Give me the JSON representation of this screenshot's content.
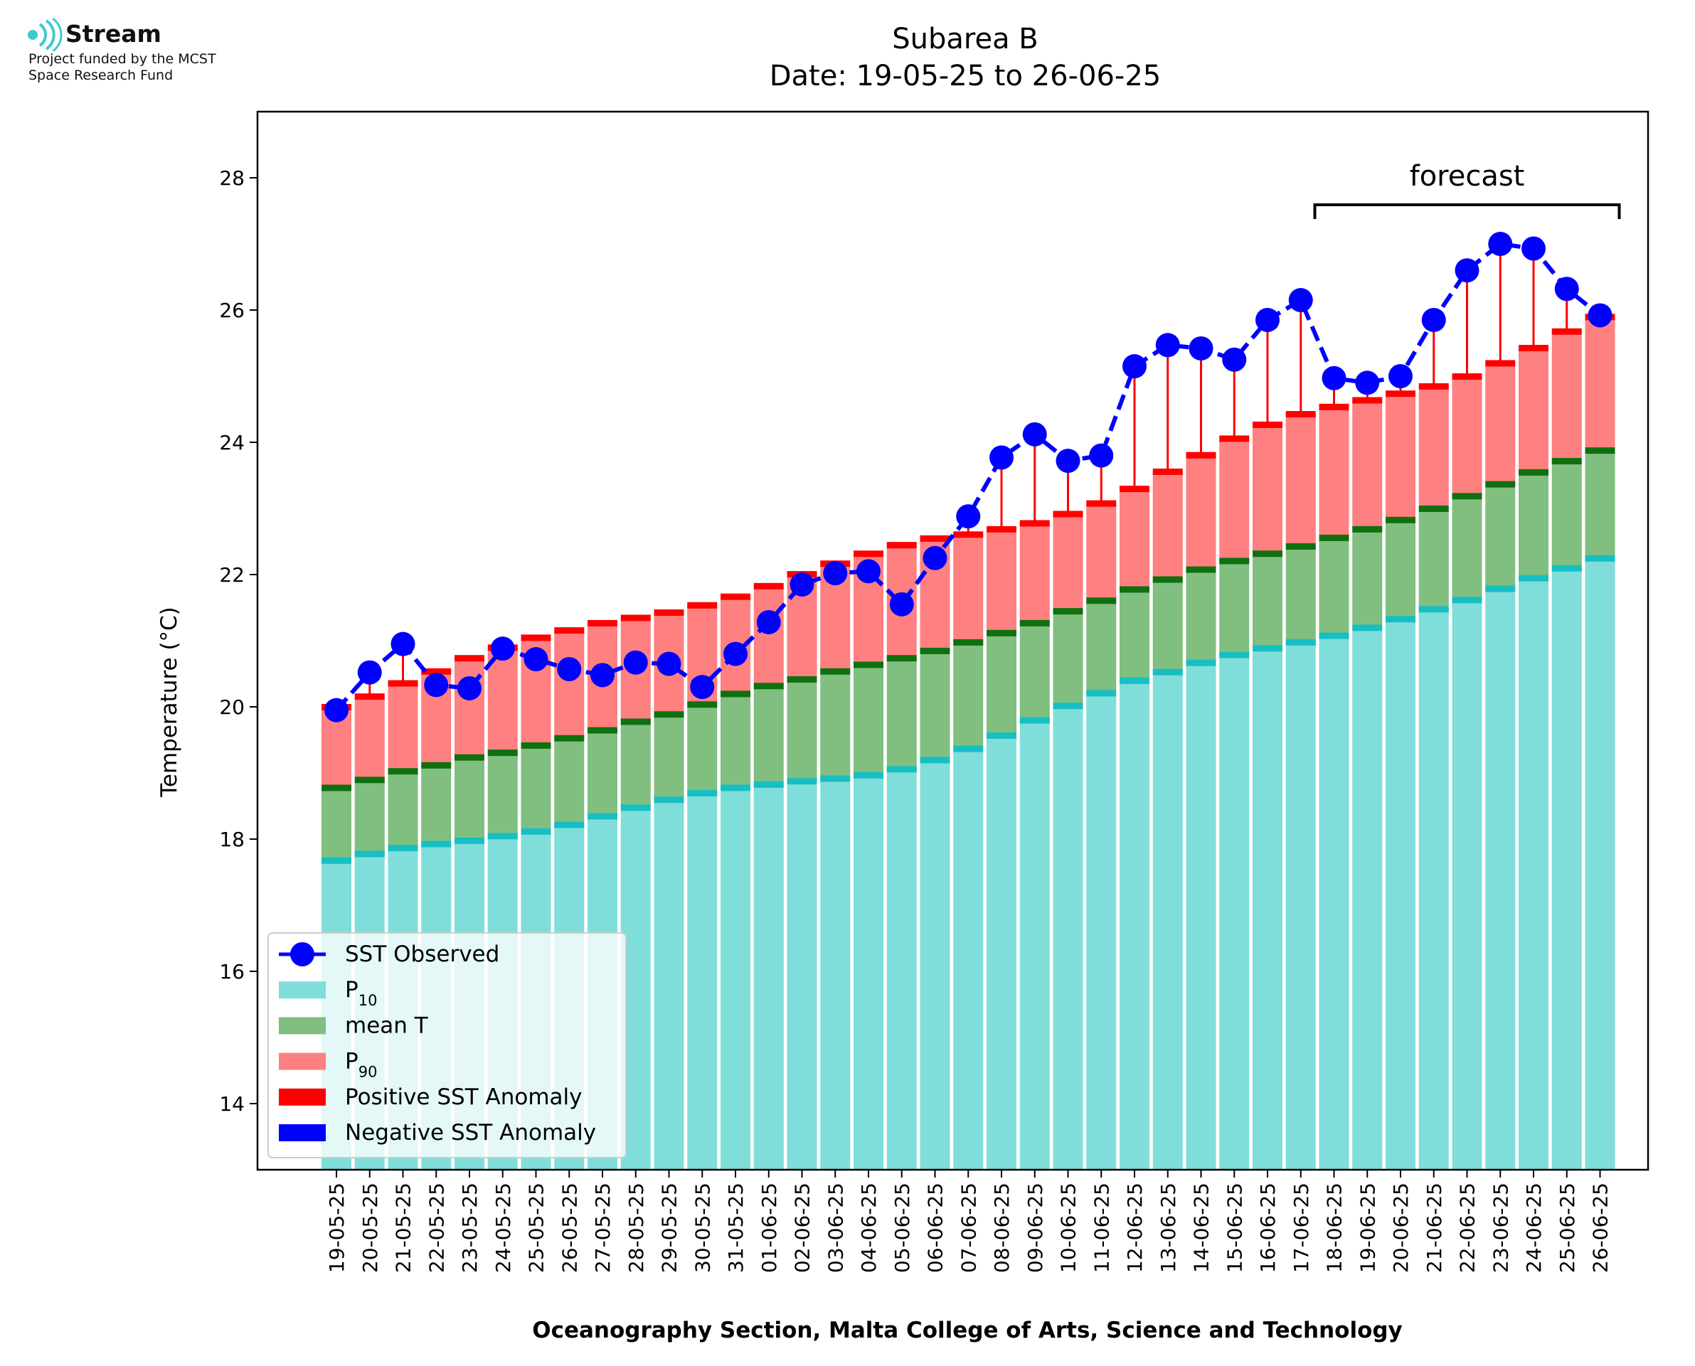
{
  "logo": {
    "name": "Stream",
    "caption_line1": "Project funded by the MCST",
    "caption_line2": "Space Research Fund"
  },
  "footer": "Oceanography Section, Malta College of Arts, Science and Technology",
  "chart_data": {
    "type": "bar",
    "title": "Subarea B",
    "subtitle": "Date: 19-05-25 to 26-06-25",
    "xlabel": "",
    "ylabel": "Temperature (°C)",
    "ylim": [
      13,
      29
    ],
    "yticks": [
      14,
      16,
      18,
      20,
      22,
      24,
      26,
      28
    ],
    "grid": false,
    "stacked": true,
    "legend_position": "lower-left",
    "annotation": {
      "text": "forecast",
      "from": "18-06-25",
      "to": "26-06-25"
    },
    "categories": [
      "19-05-25",
      "20-05-25",
      "21-05-25",
      "22-05-25",
      "23-05-25",
      "24-05-25",
      "25-05-25",
      "26-05-25",
      "27-05-25",
      "28-05-25",
      "29-05-25",
      "30-05-25",
      "31-05-25",
      "01-06-25",
      "02-06-25",
      "03-06-25",
      "04-06-25",
      "05-06-25",
      "06-06-25",
      "07-06-25",
      "08-06-25",
      "09-06-25",
      "10-06-25",
      "11-06-25",
      "12-06-25",
      "13-06-25",
      "14-06-25",
      "15-06-25",
      "16-06-25",
      "17-06-25",
      "18-06-25",
      "19-06-25",
      "20-06-25",
      "21-06-25",
      "22-06-25",
      "23-06-25",
      "24-06-25",
      "25-06-25",
      "26-06-25"
    ],
    "series": [
      {
        "name": "SST Observed",
        "kind": "line",
        "color": "#0000ff",
        "values": [
          19.95,
          20.52,
          20.95,
          20.33,
          20.28,
          20.88,
          20.72,
          20.57,
          20.48,
          20.67,
          20.65,
          20.3,
          20.8,
          21.28,
          21.85,
          22.02,
          22.05,
          21.55,
          22.25,
          22.88,
          23.77,
          24.12,
          23.72,
          23.8,
          25.15,
          25.47,
          25.42,
          25.25,
          25.85,
          26.15,
          24.97,
          24.9,
          25.0,
          25.85,
          26.6,
          27.0,
          26.93,
          26.32,
          25.92
        ]
      },
      {
        "name": "P10",
        "kind": "bar",
        "color": "#80deda",
        "edge_color": "#17bfc3",
        "values": [
          17.68,
          17.78,
          17.87,
          17.93,
          17.98,
          18.05,
          18.12,
          18.22,
          18.35,
          18.48,
          18.6,
          18.7,
          18.78,
          18.83,
          18.88,
          18.92,
          18.97,
          19.06,
          19.2,
          19.37,
          19.57,
          19.8,
          20.02,
          20.21,
          20.4,
          20.53,
          20.67,
          20.79,
          20.89,
          20.98,
          21.08,
          21.2,
          21.33,
          21.48,
          21.62,
          21.79,
          21.95,
          22.1,
          22.25
        ]
      },
      {
        "name": "mean T",
        "kind": "bar",
        "color": "#80bf80",
        "edge_color": "#107010",
        "values": [
          18.78,
          18.9,
          19.03,
          19.12,
          19.24,
          19.31,
          19.42,
          19.53,
          19.65,
          19.78,
          19.89,
          20.04,
          20.2,
          20.32,
          20.42,
          20.54,
          20.64,
          20.74,
          20.85,
          20.98,
          21.12,
          21.27,
          21.45,
          21.61,
          21.78,
          21.93,
          22.08,
          22.21,
          22.32,
          22.43,
          22.56,
          22.69,
          22.83,
          23.0,
          23.19,
          23.37,
          23.55,
          23.72,
          23.88
        ]
      },
      {
        "name": "P90",
        "kind": "bar",
        "color": "#ff8080",
        "edge_color": "#ff0000",
        "values": [
          20.0,
          20.16,
          20.36,
          20.54,
          20.74,
          20.9,
          21.05,
          21.16,
          21.27,
          21.35,
          21.43,
          21.54,
          21.67,
          21.83,
          22.01,
          22.17,
          22.32,
          22.45,
          22.55,
          22.61,
          22.69,
          22.78,
          22.92,
          23.08,
          23.3,
          23.56,
          23.81,
          24.06,
          24.27,
          24.43,
          24.54,
          24.64,
          24.74,
          24.85,
          25.0,
          25.2,
          25.43,
          25.68,
          25.9
        ]
      },
      {
        "name": "Positive SST Anomaly",
        "kind": "errorbar",
        "color": "#ff0000"
      },
      {
        "name": "Negative SST Anomaly",
        "kind": "errorbar",
        "color": "#0000ff"
      }
    ]
  }
}
